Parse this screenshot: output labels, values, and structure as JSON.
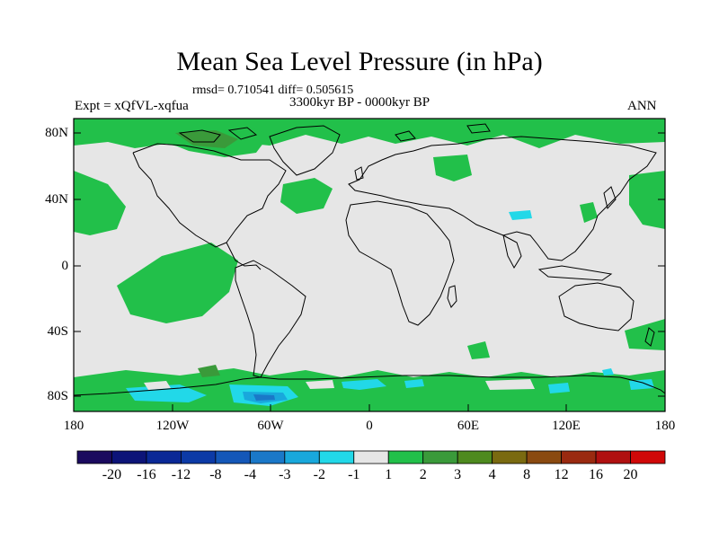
{
  "title": "Mean Sea Level Pressure (in hPa)",
  "stats": "rmsd= 0.710541  diff= 0.505615",
  "period": "3300kyr BP - 0000kyr BP",
  "experiment": "Expt = xQfVL-xqfua",
  "season": "ANN",
  "lat_labels": [
    "80N",
    "40N",
    "0",
    "40S",
    "80S"
  ],
  "lon_labels": [
    "180",
    "120W",
    "60W",
    "0",
    "60E",
    "120E",
    "180"
  ],
  "colorbar": {
    "labels": [
      "-20",
      "-16",
      "-12",
      "-8",
      "-4",
      "-3",
      "-2",
      "-1",
      "1",
      "2",
      "3",
      "4",
      "8",
      "12",
      "16",
      "20"
    ],
    "colors": [
      "#1a0a5e",
      "#0d1478",
      "#0a2896",
      "#0c3aa6",
      "#1457b8",
      "#1a78c8",
      "#19a8dc",
      "#22d8e8",
      "#e6e6e6",
      "#22c04a",
      "#3a9a3a",
      "#4e8a1e",
      "#7a6a10",
      "#8a4a10",
      "#9a2a10",
      "#b01010",
      "#d00808"
    ]
  },
  "colors": {
    "ocean_neutral": "#e6e6e6",
    "positive_small": "#22c04a",
    "positive_mid": "#3a9a3a",
    "negative_small": "#22d8e8",
    "negative_mid": "#19a8dc",
    "negative_large": "#1a78c8"
  }
}
